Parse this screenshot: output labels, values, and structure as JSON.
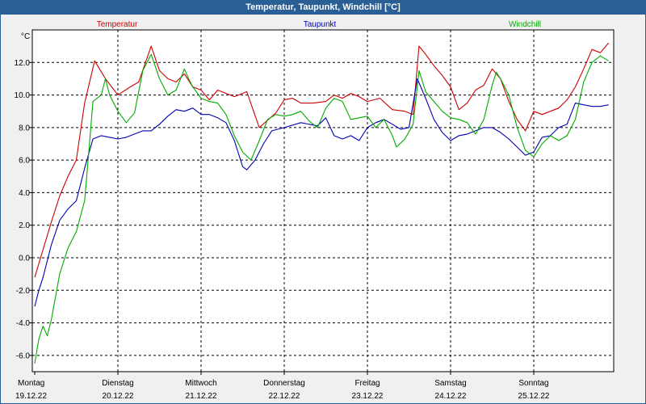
{
  "window": {
    "title": "Temperatur, Taupunkt, Windchill [°C]"
  },
  "chart_data": {
    "type": "line",
    "title": "Temperatur, Taupunkt, Windchill [°C]",
    "ylabel": "°C",
    "ylim": [
      -7,
      14
    ],
    "yticks": [
      "-6.0",
      "-4.0",
      "-2.0",
      "0.0",
      "2.0",
      "4.0",
      "6.0",
      "8.0",
      "10.0",
      "12.0"
    ],
    "x_range": [
      0,
      7
    ],
    "xticks": [
      {
        "day": "Montag",
        "date": "19.12.22"
      },
      {
        "day": "Dienstag",
        "date": "20.12.22"
      },
      {
        "day": "Mittwoch",
        "date": "21.12.22"
      },
      {
        "day": "Donnerstag",
        "date": "22.12.22"
      },
      {
        "day": "Freitag",
        "date": "23.12.22"
      },
      {
        "day": "Samstag",
        "date": "24.12.22"
      },
      {
        "day": "Sonntag",
        "date": "25.12.22"
      }
    ],
    "grid": true,
    "series": [
      {
        "name": "Temperatur",
        "color": "#cc0000",
        "points": [
          [
            0,
            -1.2
          ],
          [
            0.1,
            0.5
          ],
          [
            0.2,
            2.2
          ],
          [
            0.3,
            3.8
          ],
          [
            0.4,
            5.0
          ],
          [
            0.5,
            6.0
          ],
          [
            0.6,
            9.5
          ],
          [
            0.72,
            12.1
          ],
          [
            0.85,
            11.0
          ],
          [
            1.0,
            10.0
          ],
          [
            1.15,
            10.5
          ],
          [
            1.25,
            10.8
          ],
          [
            1.4,
            13.0
          ],
          [
            1.5,
            11.5
          ],
          [
            1.6,
            11.0
          ],
          [
            1.7,
            10.8
          ],
          [
            1.8,
            11.3
          ],
          [
            1.9,
            10.5
          ],
          [
            2.0,
            10.3
          ],
          [
            2.1,
            9.7
          ],
          [
            2.2,
            10.3
          ],
          [
            2.4,
            9.9
          ],
          [
            2.55,
            10.2
          ],
          [
            2.7,
            8.0
          ],
          [
            2.9,
            8.9
          ],
          [
            3.0,
            9.7
          ],
          [
            3.1,
            9.8
          ],
          [
            3.2,
            9.5
          ],
          [
            3.35,
            9.5
          ],
          [
            3.5,
            9.6
          ],
          [
            3.6,
            10.0
          ],
          [
            3.7,
            9.8
          ],
          [
            3.8,
            10.1
          ],
          [
            3.9,
            9.9
          ],
          [
            4.0,
            9.6
          ],
          [
            4.15,
            9.8
          ],
          [
            4.3,
            9.1
          ],
          [
            4.45,
            9.0
          ],
          [
            4.55,
            8.8
          ],
          [
            4.62,
            13.0
          ],
          [
            4.7,
            12.5
          ],
          [
            4.8,
            11.8
          ],
          [
            4.9,
            11.2
          ],
          [
            5.0,
            10.5
          ],
          [
            5.1,
            9.1
          ],
          [
            5.2,
            9.5
          ],
          [
            5.3,
            10.3
          ],
          [
            5.4,
            10.6
          ],
          [
            5.5,
            11.6
          ],
          [
            5.6,
            11.0
          ],
          [
            5.7,
            9.6
          ],
          [
            5.8,
            8.5
          ],
          [
            5.9,
            7.8
          ],
          [
            6.0,
            9.0
          ],
          [
            6.1,
            8.8
          ],
          [
            6.2,
            9.0
          ],
          [
            6.3,
            9.2
          ],
          [
            6.4,
            9.7
          ],
          [
            6.5,
            10.5
          ],
          [
            6.6,
            11.6
          ],
          [
            6.7,
            12.8
          ],
          [
            6.8,
            12.6
          ],
          [
            6.9,
            13.2
          ]
        ]
      },
      {
        "name": "Taupunkt",
        "color": "#0000b4",
        "points": [
          [
            0,
            -3.0
          ],
          [
            0.05,
            -2.0
          ],
          [
            0.1,
            -1.2
          ],
          [
            0.2,
            0.8
          ],
          [
            0.3,
            2.3
          ],
          [
            0.4,
            3.0
          ],
          [
            0.5,
            3.5
          ],
          [
            0.6,
            5.5
          ],
          [
            0.7,
            7.3
          ],
          [
            0.8,
            7.5
          ],
          [
            0.9,
            7.4
          ],
          [
            1.0,
            7.3
          ],
          [
            1.1,
            7.4
          ],
          [
            1.2,
            7.6
          ],
          [
            1.3,
            7.8
          ],
          [
            1.4,
            7.8
          ],
          [
            1.5,
            8.2
          ],
          [
            1.6,
            8.7
          ],
          [
            1.7,
            9.1
          ],
          [
            1.8,
            9.0
          ],
          [
            1.9,
            9.2
          ],
          [
            2.0,
            8.8
          ],
          [
            2.1,
            8.8
          ],
          [
            2.2,
            8.6
          ],
          [
            2.3,
            8.3
          ],
          [
            2.4,
            7.2
          ],
          [
            2.5,
            5.6
          ],
          [
            2.55,
            5.4
          ],
          [
            2.65,
            6.0
          ],
          [
            2.75,
            7.0
          ],
          [
            2.85,
            7.8
          ],
          [
            3.0,
            8.0
          ],
          [
            3.2,
            8.3
          ],
          [
            3.4,
            8.1
          ],
          [
            3.5,
            8.6
          ],
          [
            3.6,
            7.5
          ],
          [
            3.7,
            7.3
          ],
          [
            3.8,
            7.5
          ],
          [
            3.9,
            7.2
          ],
          [
            4.0,
            8.0
          ],
          [
            4.1,
            8.3
          ],
          [
            4.2,
            8.5
          ],
          [
            4.3,
            8.2
          ],
          [
            4.4,
            7.9
          ],
          [
            4.5,
            8.0
          ],
          [
            4.6,
            11.0
          ],
          [
            4.7,
            9.8
          ],
          [
            4.8,
            8.5
          ],
          [
            4.9,
            7.7
          ],
          [
            5.0,
            7.2
          ],
          [
            5.1,
            7.5
          ],
          [
            5.2,
            7.6
          ],
          [
            5.3,
            7.8
          ],
          [
            5.4,
            8.0
          ],
          [
            5.5,
            8.0
          ],
          [
            5.6,
            7.7
          ],
          [
            5.7,
            7.3
          ],
          [
            5.8,
            6.8
          ],
          [
            5.9,
            6.3
          ],
          [
            6.0,
            6.5
          ],
          [
            6.1,
            7.4
          ],
          [
            6.2,
            7.5
          ],
          [
            6.3,
            8.0
          ],
          [
            6.4,
            8.2
          ],
          [
            6.5,
            9.5
          ],
          [
            6.6,
            9.4
          ],
          [
            6.7,
            9.3
          ],
          [
            6.8,
            9.3
          ],
          [
            6.9,
            9.4
          ]
        ]
      },
      {
        "name": "Windchill",
        "color": "#00aa00",
        "points": [
          [
            0,
            -6.5
          ],
          [
            0.05,
            -5.0
          ],
          [
            0.1,
            -4.2
          ],
          [
            0.15,
            -4.8
          ],
          [
            0.2,
            -3.8
          ],
          [
            0.3,
            -1.0
          ],
          [
            0.4,
            0.6
          ],
          [
            0.5,
            1.6
          ],
          [
            0.6,
            3.5
          ],
          [
            0.65,
            6.5
          ],
          [
            0.7,
            9.6
          ],
          [
            0.8,
            10.0
          ],
          [
            0.85,
            11.0
          ],
          [
            0.9,
            10.0
          ],
          [
            1.0,
            9.0
          ],
          [
            1.1,
            8.3
          ],
          [
            1.2,
            8.9
          ],
          [
            1.3,
            11.5
          ],
          [
            1.4,
            12.5
          ],
          [
            1.5,
            11.0
          ],
          [
            1.6,
            10.0
          ],
          [
            1.7,
            10.3
          ],
          [
            1.8,
            11.6
          ],
          [
            1.85,
            11.0
          ],
          [
            1.9,
            10.5
          ],
          [
            2.0,
            9.8
          ],
          [
            2.1,
            9.6
          ],
          [
            2.2,
            9.5
          ],
          [
            2.3,
            8.8
          ],
          [
            2.4,
            7.5
          ],
          [
            2.5,
            6.5
          ],
          [
            2.6,
            6.0
          ],
          [
            2.7,
            7.2
          ],
          [
            2.8,
            8.5
          ],
          [
            2.9,
            8.8
          ],
          [
            3.0,
            8.7
          ],
          [
            3.1,
            8.8
          ],
          [
            3.2,
            9.0
          ],
          [
            3.3,
            8.4
          ],
          [
            3.4,
            8.0
          ],
          [
            3.5,
            9.2
          ],
          [
            3.6,
            9.8
          ],
          [
            3.7,
            9.6
          ],
          [
            3.8,
            8.5
          ],
          [
            3.9,
            8.6
          ],
          [
            4.0,
            8.7
          ],
          [
            4.1,
            8.0
          ],
          [
            4.2,
            8.5
          ],
          [
            4.3,
            7.5
          ],
          [
            4.35,
            6.8
          ],
          [
            4.45,
            7.3
          ],
          [
            4.55,
            8.2
          ],
          [
            4.62,
            11.5
          ],
          [
            4.7,
            10.2
          ],
          [
            4.8,
            9.6
          ],
          [
            4.9,
            9.0
          ],
          [
            5.0,
            8.6
          ],
          [
            5.1,
            8.5
          ],
          [
            5.2,
            8.3
          ],
          [
            5.3,
            7.6
          ],
          [
            5.4,
            8.5
          ],
          [
            5.5,
            10.6
          ],
          [
            5.55,
            11.4
          ],
          [
            5.6,
            11.0
          ],
          [
            5.7,
            10.0
          ],
          [
            5.8,
            8.0
          ],
          [
            5.9,
            6.6
          ],
          [
            6.0,
            6.2
          ],
          [
            6.1,
            7.0
          ],
          [
            6.2,
            7.5
          ],
          [
            6.3,
            7.2
          ],
          [
            6.4,
            7.5
          ],
          [
            6.5,
            8.5
          ],
          [
            6.6,
            10.8
          ],
          [
            6.7,
            12.0
          ],
          [
            6.8,
            12.4
          ],
          [
            6.9,
            12.1
          ]
        ]
      }
    ]
  }
}
